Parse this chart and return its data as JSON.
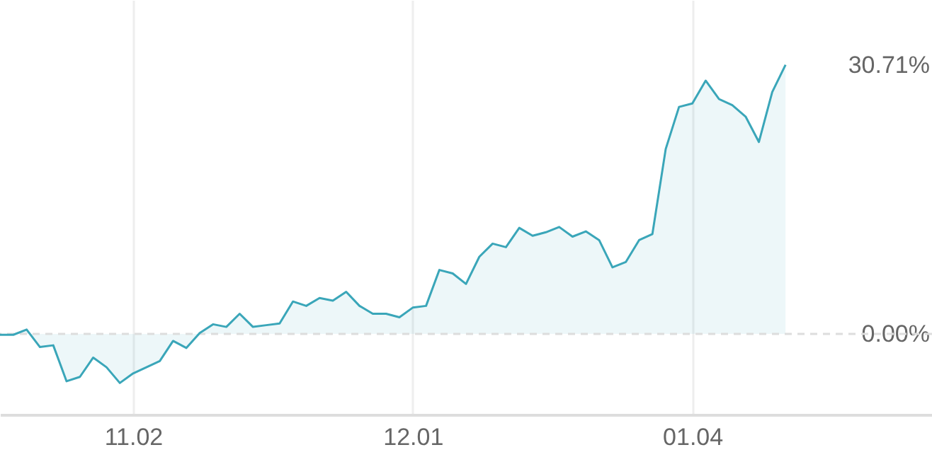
{
  "chart_data": {
    "type": "area",
    "categories": [
      null,
      null,
      null,
      null,
      null,
      null,
      null,
      null,
      null,
      null,
      "11.02",
      null,
      null,
      null,
      null,
      null,
      null,
      null,
      null,
      null,
      null,
      null,
      null,
      null,
      null,
      null,
      null,
      null,
      null,
      null,
      null,
      "12.01",
      null,
      null,
      null,
      null,
      null,
      null,
      null,
      null,
      null,
      null,
      null,
      null,
      null,
      null,
      null,
      null,
      null,
      null,
      null,
      null,
      "01.04",
      null,
      null,
      null,
      null,
      null,
      null,
      null,
      null,
      null,
      null,
      null,
      null,
      null,
      null,
      null,
      null,
      null,
      null
    ],
    "series": [
      {
        "color": "#3aa6b9",
        "values": [
          -0.1,
          -0.1,
          0.5,
          -1.5,
          -1.3,
          -5.4,
          -4.9,
          -2.7,
          -3.8,
          -5.6,
          -4.5,
          -3.8,
          -3.1,
          -0.8,
          -1.6,
          0.1,
          1.1,
          0.8,
          2.3,
          0.8,
          1.0,
          1.2,
          3.7,
          3.2,
          4.1,
          3.8,
          4.8,
          3.2,
          2.3,
          2.3,
          1.9,
          3.0,
          3.2,
          7.3,
          6.9,
          5.7,
          8.8,
          10.3,
          9.9,
          12.1,
          11.2,
          11.6,
          12.2,
          11.1,
          11.7,
          10.7,
          7.6,
          8.2,
          10.7,
          11.4,
          21.1,
          25.9,
          26.3,
          28.9,
          26.8,
          26.1,
          24.8,
          21.9,
          27.6,
          30.71,
          null,
          null,
          null,
          null,
          null,
          null,
          null,
          null,
          null,
          null,
          null
        ]
      }
    ],
    "ylim": [
      -9.2,
      38.1
    ],
    "yticks": [
      {
        "value": 0,
        "label": "0.00%"
      },
      {
        "value": 30.71,
        "label": "30.71%"
      }
    ],
    "ref_lines": [
      {
        "axis": "y",
        "value": 0,
        "color": "#dddddd",
        "line_style": "dashed"
      }
    ],
    "grid": "x"
  }
}
